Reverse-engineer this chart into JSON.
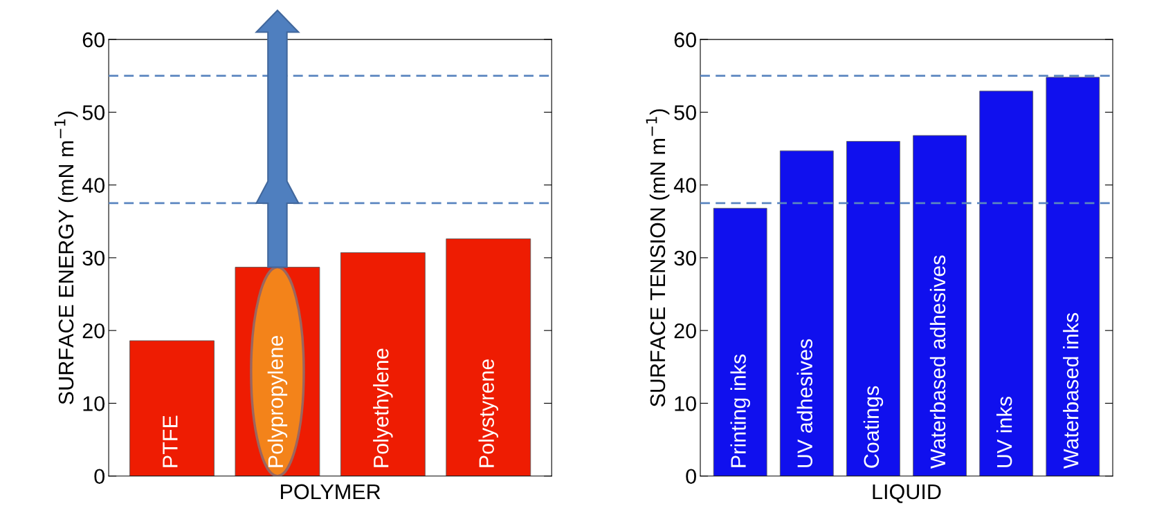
{
  "chart_data": [
    {
      "type": "bar",
      "xlabel": "POLYMER",
      "ylabel": "SURFACE ENERGY (mN m$^{−1}$)",
      "categories": [
        "PTFE",
        "Polypropylene",
        "Polyethylene",
        "Polystyrene"
      ],
      "series": [
        {
          "color": "#ee1c02",
          "values": [
            18.6,
            28.7,
            30.7,
            32.6
          ]
        }
      ],
      "ylim": [
        0,
        60
      ],
      "yticks": [
        0,
        10,
        20,
        30,
        40,
        50,
        60
      ],
      "grid": false,
      "legend": false,
      "ref_lines": [
        {
          "axis": "y",
          "value": 55,
          "color": "#5b86c0",
          "line_style": "dashed"
        },
        {
          "axis": "y",
          "value": 37.5,
          "color": "#5b86c0",
          "line_style": "dashed"
        }
      ]
    },
    {
      "type": "bar",
      "xlabel": "LIQUID",
      "ylabel": "SURFACE TENSION (mN m$^{−1}$)",
      "categories": [
        "Printing inks",
        "UV adhesives",
        "Coatings",
        "Waterbased adhesives",
        "UV inks",
        "Waterbased inks"
      ],
      "series": [
        {
          "color": "#1010ee",
          "values": [
            36.8,
            44.7,
            46.0,
            46.8,
            52.9,
            54.8
          ]
        }
      ],
      "ylim": [
        0,
        60
      ],
      "yticks": [
        0,
        10,
        20,
        30,
        40,
        50,
        60
      ],
      "grid": false,
      "legend": false,
      "ref_lines": [
        {
          "axis": "y",
          "value": 55,
          "color": "#5b86c0",
          "line_style": "dashed"
        },
        {
          "axis": "y",
          "value": 37.5,
          "color": "#5b86c0",
          "line_style": "dashed"
        }
      ]
    }
  ]
}
